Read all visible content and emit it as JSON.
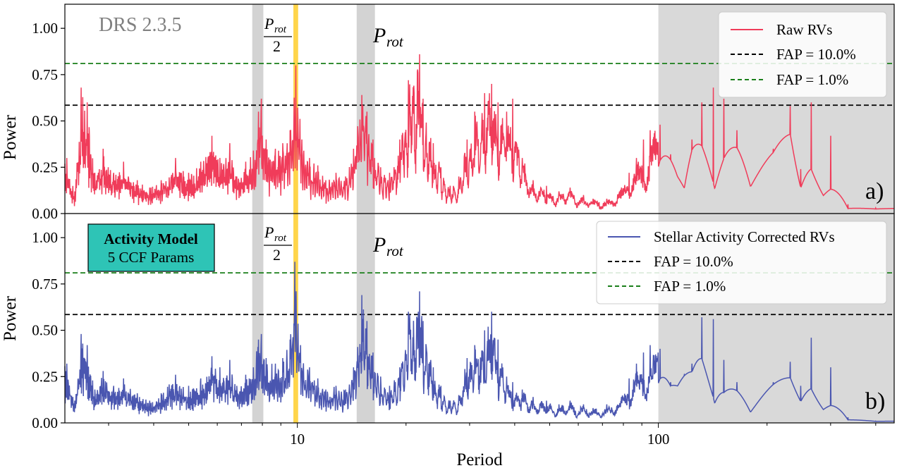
{
  "chart_data": {
    "type": "line",
    "xscale": "log",
    "xlim": [
      2.27,
      450
    ],
    "xlabel": "Period",
    "x_ticks": [
      10,
      100
    ],
    "x_tick_labels": [
      "10",
      "100"
    ],
    "shared_regions": [
      {
        "name": "P_rot/2 band",
        "range": [
          7.5,
          8.05
        ],
        "color": "#d3d3d3"
      },
      {
        "name": "P_rot band",
        "range": [
          14.6,
          16.4
        ],
        "color": "#d3d3d3"
      },
      {
        "name": "~10 d signal",
        "range": [
          9.75,
          10.05
        ],
        "color": "#ffd54a"
      },
      {
        "name": "long-period region",
        "range": [
          100,
          450
        ],
        "color": "#d9d9d9"
      }
    ],
    "panels": [
      {
        "id": "a",
        "panel_label": "a)",
        "title_annotation": "DRS 2.3.5",
        "ylabel": "Power",
        "ylim": [
          0,
          1.13
        ],
        "y_ticks": [
          0,
          0.25,
          0.5,
          0.75,
          1.0
        ],
        "y_tick_labels": [
          "0.00",
          "0.25",
          "0.50",
          "0.75",
          "1.00"
        ],
        "band_label_half_main": "P",
        "band_label_half_sub": "rot",
        "band_label_half_den": "2",
        "band_label_main": "P",
        "band_label_sub": "rot",
        "series": {
          "name": "Raw RVs",
          "color": "#f03c5a",
          "peaks": [
            [
              2.3,
              0.3
            ],
            [
              2.42,
              0.12
            ],
            [
              2.52,
              0.68
            ],
            [
              2.62,
              0.6
            ],
            [
              2.75,
              0.22
            ],
            [
              2.9,
              0.35
            ],
            [
              3.1,
              0.22
            ],
            [
              3.3,
              0.28
            ],
            [
              3.6,
              0.18
            ],
            [
              3.9,
              0.14
            ],
            [
              4.2,
              0.18
            ],
            [
              4.6,
              0.3
            ],
            [
              5.0,
              0.22
            ],
            [
              5.4,
              0.28
            ],
            [
              5.8,
              0.42
            ],
            [
              6.1,
              0.3
            ],
            [
              6.5,
              0.38
            ],
            [
              6.8,
              0.2
            ],
            [
              7.2,
              0.28
            ],
            [
              7.55,
              0.34
            ],
            [
              7.8,
              0.55
            ],
            [
              7.95,
              0.62
            ],
            [
              8.2,
              0.4
            ],
            [
              8.7,
              0.35
            ],
            [
              9.1,
              0.38
            ],
            [
              9.55,
              0.45
            ],
            [
              9.9,
              0.8
            ],
            [
              10.3,
              0.4
            ],
            [
              10.8,
              0.3
            ],
            [
              11.4,
              0.26
            ],
            [
              12.0,
              0.18
            ],
            [
              12.8,
              0.22
            ],
            [
              13.6,
              0.2
            ],
            [
              14.3,
              0.35
            ],
            [
              15.1,
              0.64
            ],
            [
              15.6,
              0.55
            ],
            [
              16.2,
              0.4
            ],
            [
              17.0,
              0.25
            ],
            [
              18.0,
              0.22
            ],
            [
              19.2,
              0.4
            ],
            [
              20.3,
              0.72
            ],
            [
              21.8,
              0.86
            ],
            [
              22.3,
              0.62
            ],
            [
              23.8,
              0.38
            ],
            [
              25.0,
              0.25
            ],
            [
              26.5,
              0.15
            ],
            [
              28.0,
              0.2
            ],
            [
              29.5,
              0.4
            ],
            [
              31.0,
              0.55
            ],
            [
              33.0,
              0.65
            ],
            [
              34.5,
              0.7
            ],
            [
              36.0,
              0.6
            ],
            [
              38.0,
              0.55
            ],
            [
              39.5,
              0.62
            ],
            [
              42.0,
              0.3
            ],
            [
              45.0,
              0.18
            ],
            [
              49.0,
              0.15
            ],
            [
              53.0,
              0.12
            ],
            [
              57.0,
              0.14
            ],
            [
              62.0,
              0.1
            ],
            [
              66.0,
              0.08
            ],
            [
              72.0,
              0.08
            ],
            [
              79.0,
              0.14
            ],
            [
              83.0,
              0.22
            ],
            [
              87.0,
              0.3
            ],
            [
              91.0,
              0.4
            ],
            [
              95.0,
              0.45
            ],
            [
              101.0,
              0.48
            ],
            [
              108.0,
              0.32
            ],
            [
              113.0,
              0.2
            ],
            [
              118.0,
              0.14
            ],
            [
              124.0,
              0.4
            ],
            [
              132.0,
              0.6
            ],
            [
              142.0,
              0.68
            ],
            [
              152.0,
              0.62
            ],
            [
              165.0,
              0.45
            ],
            [
              180.0,
              0.15
            ],
            [
              208.0,
              0.35
            ],
            [
              232.0,
              0.58
            ],
            [
              248.0,
              0.24
            ],
            [
              265.0,
              0.6
            ],
            [
              300.0,
              0.42
            ],
            [
              335.0,
              0.05
            ],
            [
              400.0,
              0.03
            ]
          ]
        },
        "hlines": [
          {
            "name": "FAP = 10.0%",
            "y": 0.585,
            "color": "#000000",
            "style": "dashed"
          },
          {
            "name": "FAP = 1.0%",
            "y": 0.81,
            "color": "#1a7f1a",
            "style": "dashed"
          }
        ],
        "legend": {
          "position": "top-right",
          "entries": [
            "Raw RVs",
            "FAP = 10.0%",
            "FAP = 1.0%"
          ]
        }
      },
      {
        "id": "b",
        "panel_label": "b)",
        "ylabel": "Power",
        "ylim": [
          0,
          1.13
        ],
        "y_ticks": [
          0,
          0.25,
          0.5,
          0.75,
          1.0
        ],
        "y_tick_labels": [
          "0.00",
          "0.25",
          "0.50",
          "0.75",
          "1.00"
        ],
        "annotation_box": {
          "title": "Activity Model",
          "subtitle": "5 CCF Params",
          "color": "#2ec4b6"
        },
        "band_label_half_main": "P",
        "band_label_half_sub": "rot",
        "band_label_half_den": "2",
        "band_label_main": "P",
        "band_label_sub": "rot",
        "series": {
          "name": "Stellar Activity Corrected RVs",
          "color": "#4a56b0",
          "peaks": [
            [
              2.3,
              0.32
            ],
            [
              2.42,
              0.12
            ],
            [
              2.52,
              0.48
            ],
            [
              2.62,
              0.42
            ],
            [
              2.75,
              0.18
            ],
            [
              2.9,
              0.28
            ],
            [
              3.1,
              0.2
            ],
            [
              3.3,
              0.24
            ],
            [
              3.6,
              0.16
            ],
            [
              3.9,
              0.12
            ],
            [
              4.2,
              0.16
            ],
            [
              4.6,
              0.26
            ],
            [
              5.0,
              0.2
            ],
            [
              5.4,
              0.24
            ],
            [
              5.8,
              0.36
            ],
            [
              6.1,
              0.3
            ],
            [
              6.5,
              0.34
            ],
            [
              6.8,
              0.2
            ],
            [
              7.2,
              0.26
            ],
            [
              7.55,
              0.3
            ],
            [
              7.8,
              0.45
            ],
            [
              7.95,
              0.48
            ],
            [
              8.2,
              0.35
            ],
            [
              8.7,
              0.32
            ],
            [
              9.1,
              0.35
            ],
            [
              9.55,
              0.45
            ],
            [
              9.85,
              0.87
            ],
            [
              10.2,
              0.42
            ],
            [
              10.8,
              0.3
            ],
            [
              11.4,
              0.24
            ],
            [
              12.0,
              0.18
            ],
            [
              12.8,
              0.2
            ],
            [
              13.6,
              0.18
            ],
            [
              14.3,
              0.3
            ],
            [
              15.1,
              0.69
            ],
            [
              15.6,
              0.55
            ],
            [
              16.2,
              0.38
            ],
            [
              17.0,
              0.25
            ],
            [
              18.0,
              0.2
            ],
            [
              19.2,
              0.3
            ],
            [
              20.3,
              0.6
            ],
            [
              21.8,
              0.71
            ],
            [
              22.3,
              0.55
            ],
            [
              23.8,
              0.3
            ],
            [
              25.0,
              0.2
            ],
            [
              26.5,
              0.12
            ],
            [
              28.0,
              0.15
            ],
            [
              29.5,
              0.35
            ],
            [
              31.0,
              0.42
            ],
            [
              33.0,
              0.5
            ],
            [
              34.5,
              0.6
            ],
            [
              36.0,
              0.45
            ],
            [
              38.0,
              0.25
            ],
            [
              39.5,
              0.22
            ],
            [
              42.0,
              0.18
            ],
            [
              45.0,
              0.14
            ],
            [
              49.0,
              0.12
            ],
            [
              53.0,
              0.1
            ],
            [
              57.0,
              0.12
            ],
            [
              62.0,
              0.1
            ],
            [
              66.0,
              0.08
            ],
            [
              72.0,
              0.1
            ],
            [
              79.0,
              0.14
            ],
            [
              83.0,
              0.24
            ],
            [
              87.0,
              0.32
            ],
            [
              91.0,
              0.38
            ],
            [
              95.0,
              0.42
            ],
            [
              101.0,
              0.4
            ],
            [
              108.0,
              0.22
            ],
            [
              113.0,
              0.2
            ],
            [
              118.0,
              0.26
            ],
            [
              124.0,
              0.32
            ],
            [
              132.0,
              0.57
            ],
            [
              142.0,
              0.56
            ],
            [
              152.0,
              0.34
            ],
            [
              165.0,
              0.22
            ],
            [
              180.0,
              0.06
            ],
            [
              208.0,
              0.22
            ],
            [
              232.0,
              0.33
            ],
            [
              248.0,
              0.2
            ],
            [
              265.0,
              0.46
            ],
            [
              300.0,
              0.3
            ],
            [
              335.0,
              0.03
            ],
            [
              400.0,
              0.01
            ]
          ]
        },
        "hlines": [
          {
            "name": "FAP = 10.0%",
            "y": 0.585,
            "color": "#000000",
            "style": "dashed"
          },
          {
            "name": "FAP = 1.0%",
            "y": 0.81,
            "color": "#1a7f1a",
            "style": "dashed"
          }
        ],
        "legend": {
          "position": "top-right",
          "entries": [
            "Stellar Activity Corrected RVs",
            "FAP = 10.0%",
            "FAP = 1.0%"
          ]
        }
      }
    ]
  }
}
